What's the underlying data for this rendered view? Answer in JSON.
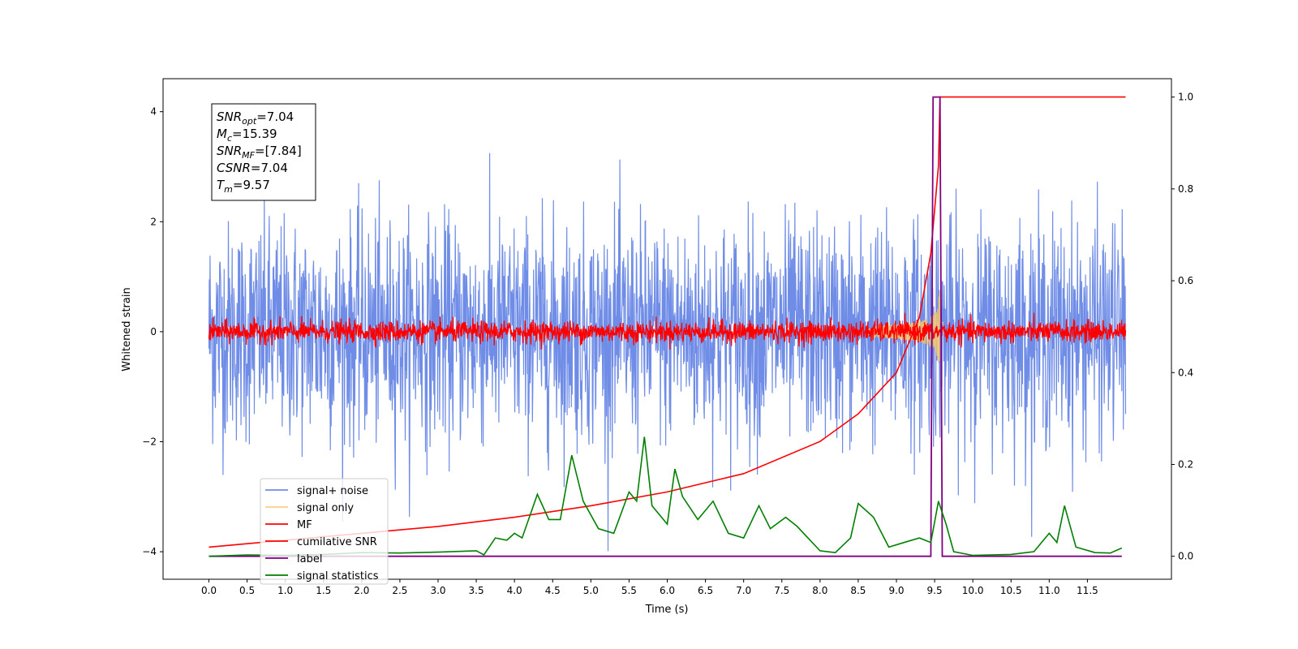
{
  "chart_data": {
    "type": "line",
    "xlabel": "Time (s)",
    "ylabel_left": "Whitened strain",
    "ylabel_right": "",
    "xlim": [
      -0.6,
      12.6
    ],
    "ylim_left": [
      -4.5,
      4.6
    ],
    "ylim_right": [
      -0.05,
      1.04
    ],
    "x_ticks": [
      0.0,
      0.5,
      1.0,
      1.5,
      2.0,
      2.5,
      3.0,
      3.5,
      4.0,
      4.5,
      5.0,
      5.5,
      6.0,
      6.5,
      7.0,
      7.5,
      8.0,
      8.5,
      9.0,
      9.5,
      10.0,
      10.5,
      11.0,
      11.5
    ],
    "x_tick_labels": [
      "0.0",
      "0.5",
      "1.0",
      "1.5",
      "2.0",
      "2.5",
      "3.0",
      "3.5",
      "4.0",
      "4.5",
      "5.0",
      "5.5",
      "6.0",
      "6.5",
      "7.0",
      "7.5",
      "8.0",
      "8.5",
      "9.0",
      "9.5",
      "10.0",
      "10.5",
      "11.0",
      "11.5"
    ],
    "y_left_ticks": [
      -4,
      -2,
      0,
      2,
      4
    ],
    "y_left_tick_labels": [
      "−4",
      "−2",
      "0",
      "2",
      "4"
    ],
    "y_right_ticks": [
      0.0,
      0.2,
      0.4,
      0.6,
      0.8,
      1.0
    ],
    "y_right_tick_labels": [
      "0.0",
      "0.2",
      "0.4",
      "0.6",
      "0.8",
      "1.0"
    ],
    "legend_placement": "lower-left",
    "grid": false,
    "annotation_box": {
      "placement": "top-left",
      "lines": [
        {
          "var": "SNR",
          "sub": "opt",
          "rest": "=7.04"
        },
        {
          "var": "M",
          "sub": "c",
          "rest": "=15.39"
        },
        {
          "var": "SNR",
          "sub": "MF",
          "rest": "=[7.84]"
        },
        {
          "var": "CSNR",
          "sub": "",
          "rest": "=7.04"
        },
        {
          "var": "T",
          "sub": "m",
          "rest": "=9.57"
        }
      ]
    },
    "series": [
      {
        "name": "signal+ noise",
        "axis": "left",
        "color": "#6f8de6",
        "kind": "noise",
        "x_range": [
          0.0,
          12.0
        ],
        "center": 0.0,
        "typical_amplitude": 1.6,
        "max_abs": 4.15
      },
      {
        "name": "signal only",
        "axis": "left",
        "color": "#f5c56a",
        "kind": "chirp",
        "x_range": [
          8.6,
          9.62
        ],
        "peak_time": 9.57,
        "peak_amplitude": 1.0
      },
      {
        "name": "MF",
        "axis": "left",
        "color": "#ff0000",
        "kind": "noise",
        "x_range": [
          0.0,
          12.0
        ],
        "center": 0.0,
        "typical_amplitude": 0.12,
        "max_abs": 0.5
      },
      {
        "name": "cumilative SNR",
        "axis": "right",
        "color": "#ff0000",
        "kind": "curve",
        "points": [
          [
            0.0,
            0.02
          ],
          [
            1.0,
            0.035
          ],
          [
            2.0,
            0.05
          ],
          [
            3.0,
            0.065
          ],
          [
            4.0,
            0.085
          ],
          [
            5.0,
            0.11
          ],
          [
            6.0,
            0.14
          ],
          [
            7.0,
            0.18
          ],
          [
            8.0,
            0.25
          ],
          [
            8.5,
            0.31
          ],
          [
            9.0,
            0.4
          ],
          [
            9.3,
            0.52
          ],
          [
            9.45,
            0.66
          ],
          [
            9.55,
            0.85
          ],
          [
            9.57,
            1.0
          ],
          [
            12.0,
            1.0
          ]
        ]
      },
      {
        "name": "label",
        "axis": "right",
        "color": "#800080",
        "kind": "step",
        "points": [
          [
            0.0,
            0.0
          ],
          [
            9.45,
            0.0
          ],
          [
            9.48,
            1.0
          ],
          [
            9.57,
            1.0
          ],
          [
            9.6,
            0.0
          ],
          [
            11.95,
            0.0
          ]
        ]
      },
      {
        "name": "signal statistics",
        "axis": "right",
        "color": "#008000",
        "kind": "curve",
        "points": [
          [
            0.0,
            0.0
          ],
          [
            0.5,
            0.003
          ],
          [
            1.0,
            0.002
          ],
          [
            1.5,
            0.004
          ],
          [
            2.0,
            0.008
          ],
          [
            2.5,
            0.007
          ],
          [
            3.0,
            0.009
          ],
          [
            3.5,
            0.012
          ],
          [
            3.6,
            0.003
          ],
          [
            3.75,
            0.04
          ],
          [
            3.9,
            0.035
          ],
          [
            4.0,
            0.05
          ],
          [
            4.1,
            0.04
          ],
          [
            4.3,
            0.135
          ],
          [
            4.45,
            0.08
          ],
          [
            4.6,
            0.08
          ],
          [
            4.75,
            0.22
          ],
          [
            4.9,
            0.12
          ],
          [
            5.1,
            0.06
          ],
          [
            5.3,
            0.05
          ],
          [
            5.5,
            0.14
          ],
          [
            5.6,
            0.12
          ],
          [
            5.7,
            0.26
          ],
          [
            5.8,
            0.11
          ],
          [
            6.0,
            0.07
          ],
          [
            6.1,
            0.19
          ],
          [
            6.2,
            0.13
          ],
          [
            6.4,
            0.08
          ],
          [
            6.6,
            0.12
          ],
          [
            6.8,
            0.05
          ],
          [
            7.0,
            0.04
          ],
          [
            7.2,
            0.11
          ],
          [
            7.35,
            0.06
          ],
          [
            7.55,
            0.085
          ],
          [
            7.7,
            0.065
          ],
          [
            8.0,
            0.012
          ],
          [
            8.2,
            0.008
          ],
          [
            8.4,
            0.04
          ],
          [
            8.5,
            0.115
          ],
          [
            8.7,
            0.085
          ],
          [
            8.9,
            0.02
          ],
          [
            9.1,
            0.03
          ],
          [
            9.3,
            0.04
          ],
          [
            9.45,
            0.03
          ],
          [
            9.55,
            0.12
          ],
          [
            9.65,
            0.07
          ],
          [
            9.75,
            0.01
          ],
          [
            10.0,
            0.002
          ],
          [
            10.5,
            0.004
          ],
          [
            10.8,
            0.01
          ],
          [
            11.0,
            0.05
          ],
          [
            11.1,
            0.03
          ],
          [
            11.2,
            0.11
          ],
          [
            11.35,
            0.02
          ],
          [
            11.6,
            0.008
          ],
          [
            11.8,
            0.007
          ],
          [
            11.95,
            0.018
          ]
        ]
      }
    ]
  }
}
